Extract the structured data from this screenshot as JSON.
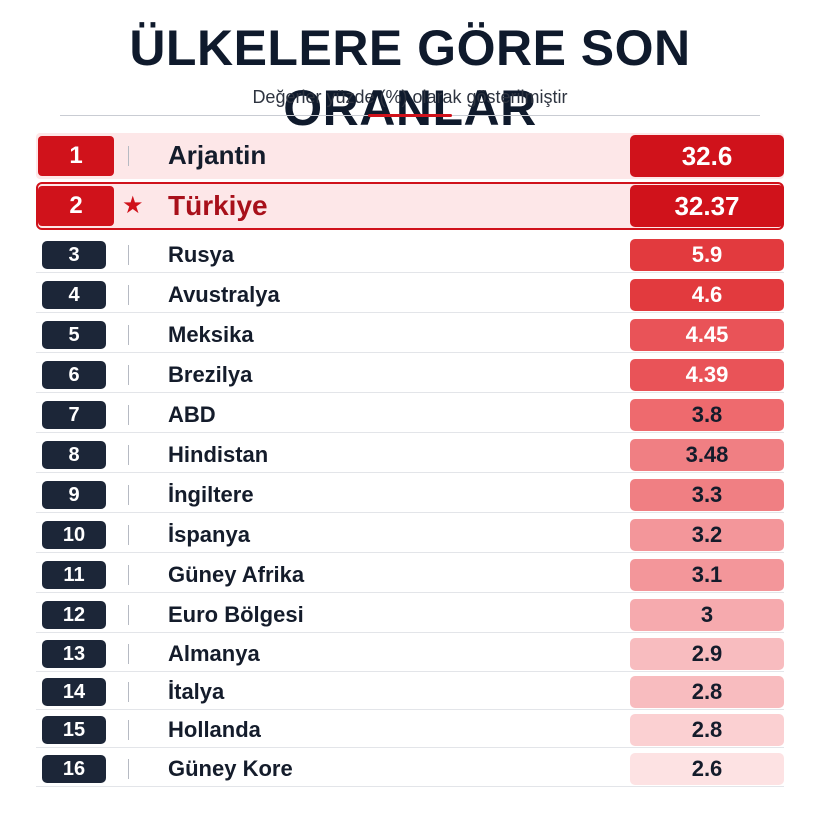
{
  "title": "ÜLKELERE GÖRE SON ORANLAR",
  "subtitle": "Değerler yüzde (%) olarak gösterilmiştir",
  "chart_data": {
    "type": "table",
    "title": "ÜLKELERE GÖRE SON ORANLAR",
    "subtitle": "Değerler yüzde (%) olarak gösterilmiştir",
    "highlight": "Türkiye",
    "rows": [
      {
        "rank": "1",
        "country": "Arjantin",
        "value": "32.6"
      },
      {
        "rank": "2",
        "country": "Türkiye",
        "value": "32.37"
      },
      {
        "rank": "3",
        "country": "Rusya",
        "value": "5.9"
      },
      {
        "rank": "4",
        "country": "Avustralya",
        "value": "4.6"
      },
      {
        "rank": "5",
        "country": "Meksika",
        "value": "4.45"
      },
      {
        "rank": "6",
        "country": "Brezilya",
        "value": "4.39"
      },
      {
        "rank": "7",
        "country": "ABD",
        "value": "3.8"
      },
      {
        "rank": "8",
        "country": "Hindistan",
        "value": "3.48"
      },
      {
        "rank": "9",
        "country": "İngiltere",
        "value": "3.3"
      },
      {
        "rank": "10",
        "country": "İspanya",
        "value": "3.2"
      },
      {
        "rank": "11",
        "country": "Güney Afrika",
        "value": "3.1"
      },
      {
        "rank": "12",
        "country": "Euro Bölgesi",
        "value": "3"
      },
      {
        "rank": "13",
        "country": "Almanya",
        "value": "2.9"
      },
      {
        "rank": "14",
        "country": "İtalya",
        "value": "2.8"
      },
      {
        "rank": "15",
        "country": "Hollanda",
        "value": "2.8"
      },
      {
        "rank": "16",
        "country": "Güney Kore",
        "value": "2.6"
      }
    ]
  },
  "colors": {
    "accent": "#d0121b",
    "rank_dark": "#1c2638",
    "highlight_bg": "#fde7e8",
    "highlight_text": "#a8101a",
    "value_scale": [
      "#d0121b",
      "#e23a3e",
      "#e95358",
      "#ee6a6e",
      "#f07f83",
      "#f3969a",
      "#f6aaae",
      "#f8bcbf",
      "#fbd0d2",
      "#fde2e3"
    ],
    "value_text_light": "#ffffff",
    "value_text_dark": "#141c2b"
  },
  "icons": {
    "highlight_marker": "star-icon"
  }
}
